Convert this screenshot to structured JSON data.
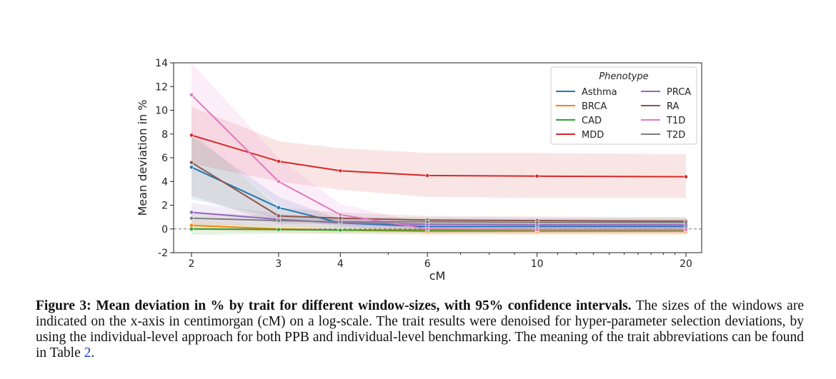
{
  "chart_data": {
    "type": "line",
    "xlabel": "cM",
    "ylabel": "Mean deviation in %",
    "x_scale": "log",
    "x": [
      2,
      3,
      4,
      6,
      10,
      20
    ],
    "x_tick_labels": [
      "2",
      "3",
      "4",
      "6",
      "10",
      "20"
    ],
    "ylim": [
      -2,
      14
    ],
    "y_ticks": [
      -2,
      0,
      2,
      4,
      6,
      8,
      10,
      12,
      14
    ],
    "y_tick_labels": [
      "-2",
      "0",
      "2",
      "4",
      "6",
      "8",
      "10",
      "12",
      "14"
    ],
    "reference_line": 0,
    "legend": {
      "title": "Phenotype",
      "placement": "top-right",
      "columns": 2
    },
    "series": [
      {
        "name": "Asthma",
        "color": "#1f77b4",
        "values": [
          5.2,
          1.8,
          0.5,
          0.2,
          0.2,
          0.2
        ],
        "ci_low": [
          2.5,
          0.9,
          0.2,
          0.0,
          0.0,
          0.0
        ],
        "ci_high": [
          7.8,
          2.7,
          0.8,
          0.4,
          0.4,
          0.4
        ]
      },
      {
        "name": "BRCA",
        "color": "#ff7f0e",
        "values": [
          0.3,
          0.0,
          -0.1,
          -0.2,
          -0.2,
          -0.2
        ],
        "ci_low": [
          -0.1,
          -0.3,
          -0.4,
          -0.5,
          -0.5,
          -0.5
        ],
        "ci_high": [
          0.7,
          0.3,
          0.2,
          0.1,
          0.1,
          0.1
        ]
      },
      {
        "name": "CAD",
        "color": "#2ca02c",
        "values": [
          0.0,
          -0.05,
          -0.1,
          -0.1,
          -0.1,
          -0.1
        ],
        "ci_low": [
          -0.5,
          -0.4,
          -0.4,
          -0.4,
          -0.4,
          -0.4
        ],
        "ci_high": [
          0.5,
          0.3,
          0.2,
          0.2,
          0.2,
          0.2
        ]
      },
      {
        "name": "MDD",
        "color": "#d62728",
        "values": [
          7.9,
          5.7,
          4.9,
          4.5,
          4.45,
          4.4
        ],
        "ci_low": [
          5.5,
          4.0,
          3.3,
          2.7,
          2.6,
          2.6
        ],
        "ci_high": [
          10.3,
          7.4,
          6.8,
          6.4,
          6.4,
          6.3
        ]
      },
      {
        "name": "PRCA",
        "color": "#9467bd",
        "values": [
          1.4,
          0.8,
          0.5,
          0.4,
          0.35,
          0.35
        ],
        "ci_low": [
          0.6,
          0.3,
          0.1,
          0.05,
          0.0,
          0.0
        ],
        "ci_high": [
          2.2,
          1.3,
          0.9,
          0.8,
          0.8,
          0.8
        ]
      },
      {
        "name": "RA",
        "color": "#8c564b",
        "values": [
          5.6,
          1.1,
          0.9,
          0.75,
          0.7,
          0.65
        ],
        "ci_low": [
          2.8,
          0.4,
          0.4,
          0.35,
          0.35,
          0.3
        ],
        "ci_high": [
          8.2,
          1.8,
          1.4,
          1.1,
          1.05,
          1.0
        ]
      },
      {
        "name": "T1D",
        "color": "#e377c2",
        "values": [
          11.3,
          4.0,
          1.2,
          0.0,
          -0.05,
          -0.05
        ],
        "ci_low": [
          8.0,
          2.0,
          0.3,
          -0.4,
          -0.4,
          -0.4
        ],
        "ci_high": [
          14.0,
          6.0,
          2.1,
          0.4,
          0.3,
          0.3
        ]
      },
      {
        "name": "T2D",
        "color": "#7f7f7f",
        "values": [
          0.9,
          0.7,
          0.6,
          0.6,
          0.55,
          0.55
        ],
        "ci_low": [
          0.4,
          0.3,
          0.2,
          0.2,
          0.2,
          0.2
        ],
        "ci_high": [
          1.4,
          1.1,
          1.0,
          1.0,
          0.95,
          0.95
        ]
      }
    ]
  },
  "caption": {
    "bold_text": "Figure 3: Mean deviation in % by trait for different window-sizes, with 95% confidence intervals.",
    "body_text": " The sizes of the windows are indicated on the x-axis in centimorgan (cM) on a log-scale. The trait results were denoised for hyper-parameter selection deviations, by using the individual-level approach for both PPB and individual-level benchmarking. The meaning of the trait abbreviations can be found in Table ",
    "table_ref": "2",
    "end_text": "."
  }
}
